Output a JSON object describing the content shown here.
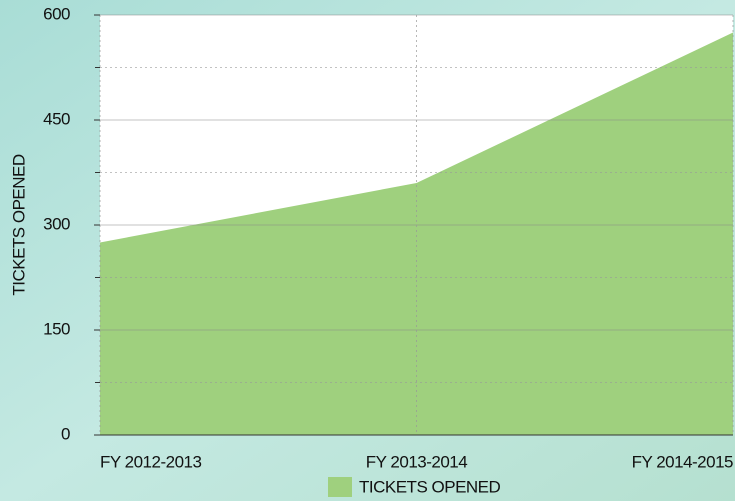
{
  "chart_data": {
    "type": "area",
    "y_label": "TICKETS OPENED",
    "categories": [
      "FY 2012-2013",
      "FY 2013-2014",
      "FY 2014-2015"
    ],
    "series": [
      {
        "name": "TICKETS OPENED",
        "color": "#9fd07e",
        "values": [
          275,
          360,
          575
        ]
      }
    ],
    "ylim": [
      0,
      600
    ],
    "yticks": [
      0,
      150,
      300,
      450,
      600
    ],
    "yminorticks": [
      75,
      225,
      375,
      525
    ],
    "grid": true,
    "legend": "bottom"
  }
}
